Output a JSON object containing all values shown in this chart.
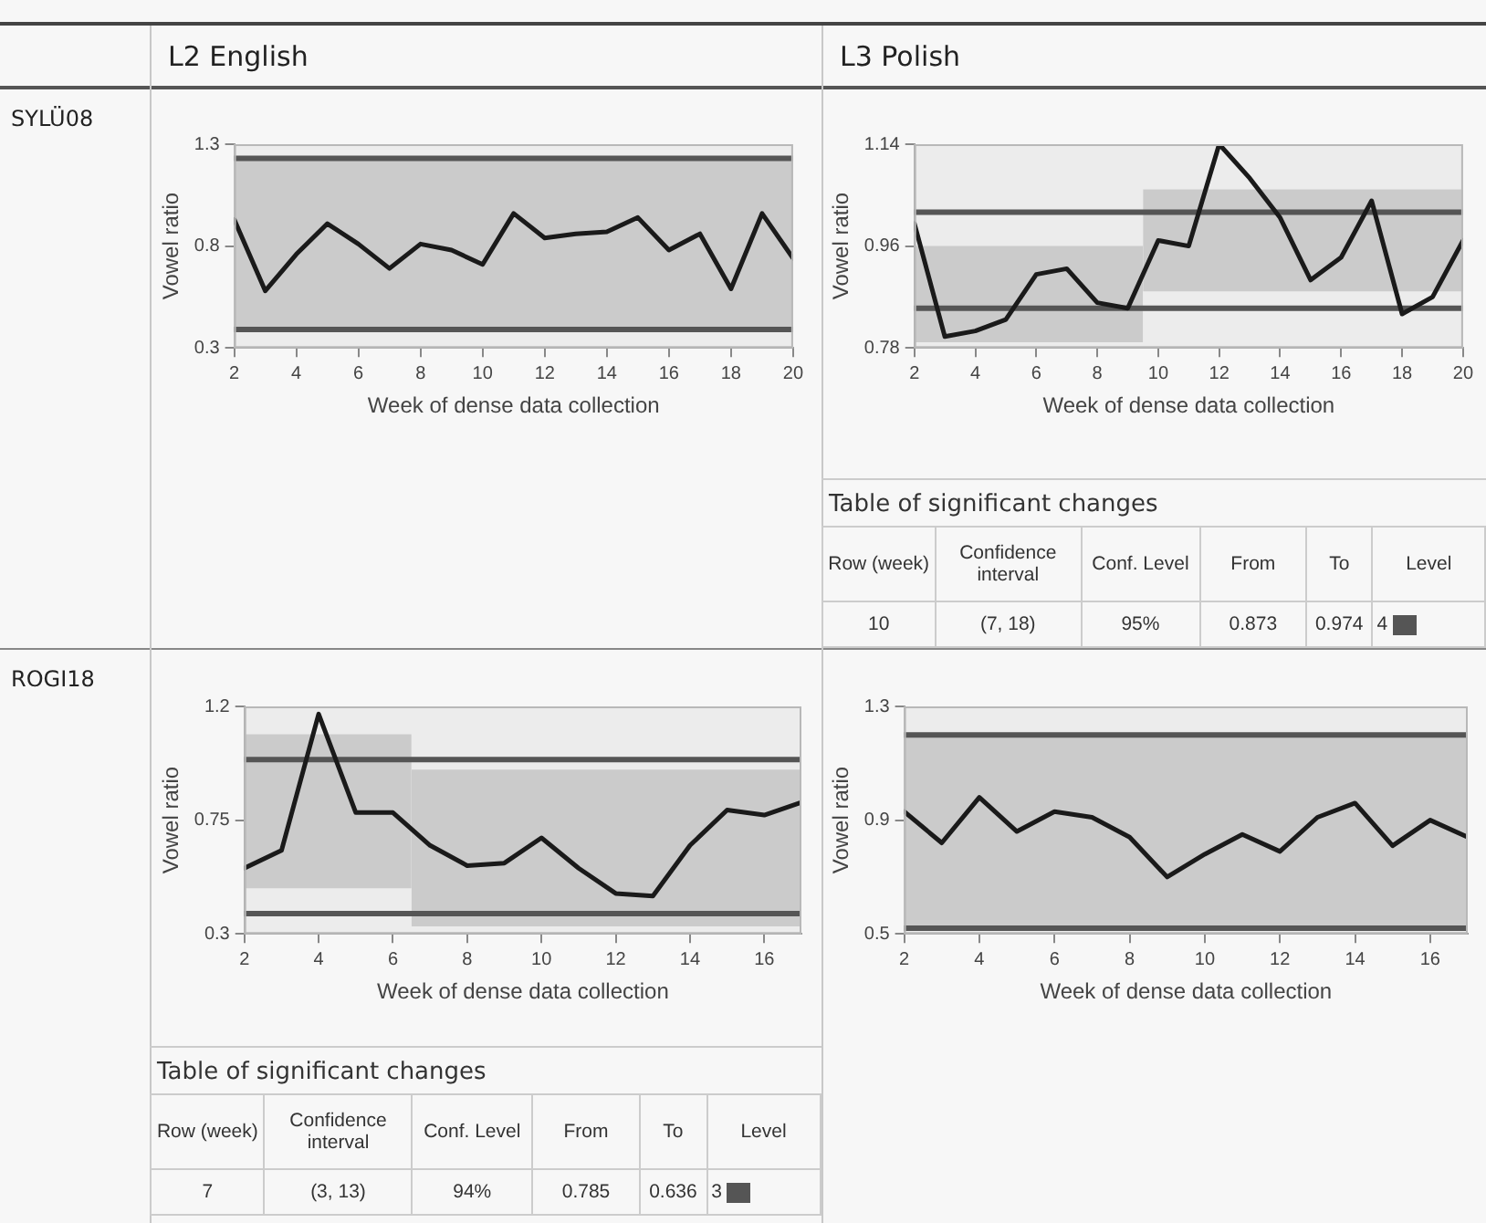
{
  "chart_data": [
    {
      "type": "other",
      "annotations": [
        "L2 English",
        "L3 Polish",
        "SYLÜ08",
        "ROGI18"
      ]
    },
    {
      "type": "line",
      "xlabel": "Week of dense data collection",
      "ylabel": "Vowel ratio",
      "xlim": [
        2,
        20
      ],
      "xticks": [
        2,
        4,
        6,
        8,
        10,
        12,
        14,
        16,
        18,
        20
      ],
      "ylim": [
        0.3,
        1.3
      ],
      "yticks": [
        0.3,
        0.8,
        1.3
      ],
      "grid": false,
      "legend": false,
      "marker": "none",
      "line_style": "solid",
      "series": [
        {
          "color": "#1a1a1a",
          "x": [
            2,
            3,
            4,
            5,
            6,
            7,
            8,
            9,
            10,
            11,
            12,
            13,
            14,
            15,
            16,
            17,
            18,
            19,
            20
          ],
          "values": [
            0.93,
            0.58,
            0.76,
            0.91,
            0.81,
            0.69,
            0.81,
            0.78,
            0.71,
            0.96,
            0.84,
            0.86,
            0.87,
            0.94,
            0.78,
            0.86,
            0.59,
            0.96,
            0.74
          ]
        }
      ],
      "bands": [
        {
          "axis": "y",
          "from": 0.39,
          "to": 1.23,
          "color": "#cbcbcb"
        }
      ],
      "ref_lines": [
        {
          "axis": "y",
          "value": 1.23,
          "color": "#555555"
        },
        {
          "axis": "y",
          "value": 0.39,
          "color": "#555555"
        }
      ]
    },
    {
      "type": "line",
      "xlabel": "Week of dense data collection",
      "ylabel": "Vowel ratio",
      "xlim": [
        2,
        20
      ],
      "xticks": [
        2,
        4,
        6,
        8,
        10,
        12,
        14,
        16,
        18,
        20
      ],
      "ylim": [
        0.78,
        1.14
      ],
      "yticks": [
        0.78,
        0.96,
        1.14
      ],
      "grid": false,
      "legend": false,
      "marker": "none",
      "line_style": "solid",
      "series": [
        {
          "color": "#1a1a1a",
          "x": [
            2,
            3,
            4,
            5,
            6,
            7,
            8,
            9,
            10,
            11,
            12,
            13,
            14,
            15,
            16,
            17,
            18,
            19,
            20
          ],
          "values": [
            1.0,
            0.8,
            0.81,
            0.83,
            0.91,
            0.92,
            0.86,
            0.85,
            0.97,
            0.96,
            1.14,
            1.08,
            1.01,
            0.9,
            0.94,
            1.04,
            0.84,
            0.87,
            0.97
          ]
        },
        {
          "type": "area",
          "color": "#cbcbcb",
          "x": [
            2,
            9.5
          ],
          "values": [
            null,
            null
          ],
          "lower": [
            0.79,
            0.79
          ],
          "upper": [
            0.96,
            0.96
          ]
        },
        {
          "type": "area",
          "color": "#cbcbcb",
          "x": [
            9.5,
            20
          ],
          "values": [
            null,
            null
          ],
          "lower": [
            0.88,
            0.88
          ],
          "upper": [
            1.06,
            1.06
          ]
        }
      ],
      "ref_lines": [
        {
          "axis": "y",
          "value": 1.02,
          "color": "#555555"
        },
        {
          "axis": "y",
          "value": 0.85,
          "color": "#555555"
        }
      ]
    },
    {
      "type": "other",
      "title": "Table of significant changes",
      "categories": [
        "Row (week)",
        "Confidence interval",
        "Conf. Level",
        "From",
        "To",
        "Level"
      ],
      "cell_labels": [
        [
          "10",
          "(7, 18)",
          "95%",
          "0.873",
          "0.974",
          "4"
        ]
      ]
    },
    {
      "type": "line",
      "xlabel": "Week of dense data collection",
      "ylabel": "Vowel ratio",
      "xlim": [
        2,
        17
      ],
      "xticks": [
        2,
        4,
        6,
        8,
        10,
        12,
        14,
        16
      ],
      "ylim": [
        0.3,
        1.2
      ],
      "yticks": [
        0.3,
        0.75,
        1.2
      ],
      "grid": false,
      "legend": false,
      "marker": "none",
      "line_style": "solid",
      "series": [
        {
          "color": "#1a1a1a",
          "x": [
            2,
            3,
            4,
            5,
            6,
            7,
            8,
            9,
            10,
            11,
            12,
            13,
            14,
            15,
            16,
            17
          ],
          "values": [
            0.56,
            0.63,
            1.17,
            0.78,
            0.78,
            0.65,
            0.57,
            0.58,
            0.68,
            0.56,
            0.46,
            0.45,
            0.65,
            0.79,
            0.77,
            0.82
          ]
        },
        {
          "type": "area",
          "color": "#cbcbcb",
          "x": [
            2,
            6.5
          ],
          "values": [
            null,
            null
          ],
          "lower": [
            0.48,
            0.48
          ],
          "upper": [
            1.09,
            1.09
          ]
        },
        {
          "type": "area",
          "color": "#cbcbcb",
          "x": [
            6.5,
            17
          ],
          "values": [
            null,
            null
          ],
          "lower": [
            0.33,
            0.33
          ],
          "upper": [
            0.95,
            0.95
          ]
        }
      ],
      "ref_lines": [
        {
          "axis": "y",
          "value": 0.99,
          "color": "#555555"
        },
        {
          "axis": "y",
          "value": 0.38,
          "color": "#555555"
        }
      ]
    },
    {
      "type": "line",
      "xlabel": "Week of dense data collection",
      "ylabel": "Vowel ratio",
      "xlim": [
        2,
        17
      ],
      "xticks": [
        2,
        4,
        6,
        8,
        10,
        12,
        14,
        16
      ],
      "ylim": [
        0.5,
        1.3
      ],
      "yticks": [
        0.5,
        0.9,
        1.3
      ],
      "grid": false,
      "legend": false,
      "marker": "none",
      "line_style": "solid",
      "series": [
        {
          "color": "#1a1a1a",
          "x": [
            2,
            3,
            4,
            5,
            6,
            7,
            8,
            9,
            10,
            11,
            12,
            13,
            14,
            15,
            16,
            17
          ],
          "values": [
            0.93,
            0.82,
            0.98,
            0.86,
            0.93,
            0.91,
            0.84,
            0.7,
            0.78,
            0.85,
            0.79,
            0.91,
            0.96,
            0.81,
            0.9,
            0.84
          ]
        }
      ],
      "bands": [
        {
          "axis": "y",
          "from": 0.52,
          "to": 1.2,
          "color": "#cbcbcb"
        }
      ],
      "ref_lines": [
        {
          "axis": "y",
          "value": 1.2,
          "color": "#555555"
        },
        {
          "axis": "y",
          "value": 0.52,
          "color": "#555555"
        }
      ]
    },
    {
      "type": "other",
      "title": "Table of significant changes",
      "categories": [
        "Row (week)",
        "Confidence interval",
        "Conf. Level",
        "From",
        "To",
        "Level"
      ],
      "cell_labels": [
        [
          "7",
          "(3, 13)",
          "94%",
          "0.785",
          "0.636",
          "3"
        ]
      ]
    }
  ]
}
